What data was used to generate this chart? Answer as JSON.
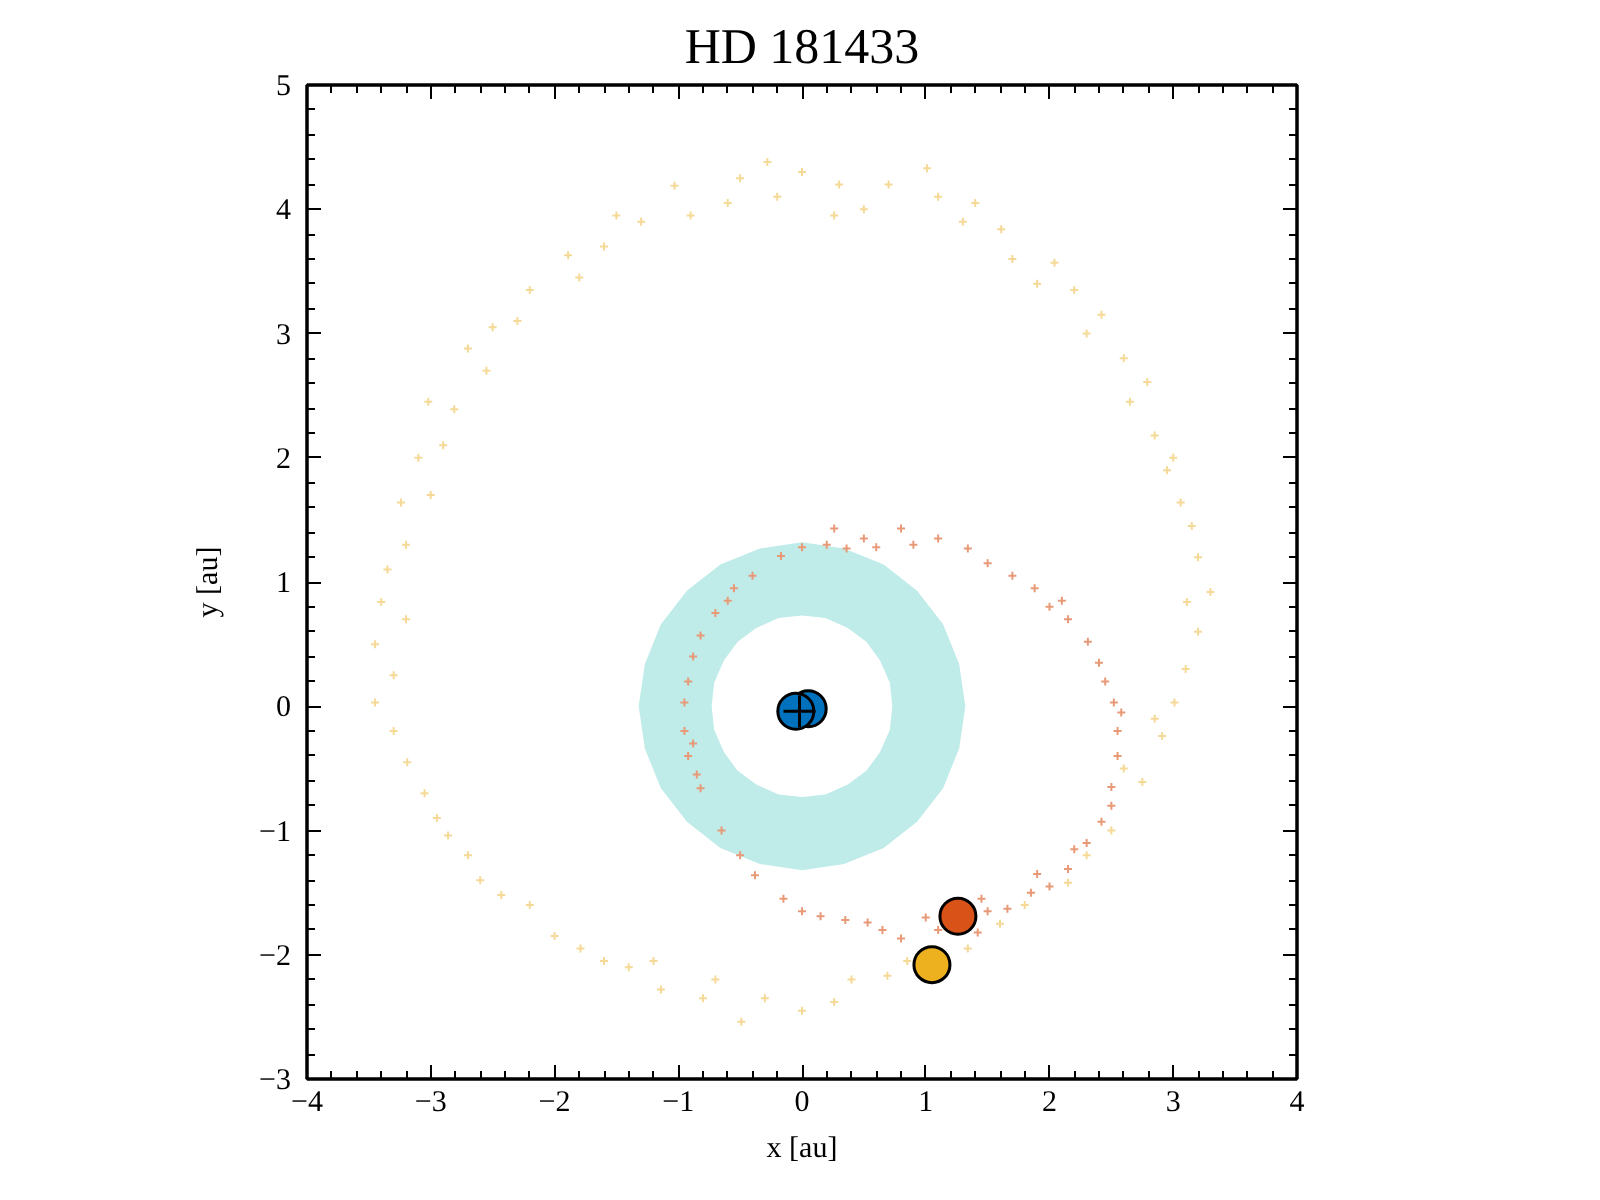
{
  "chart_data": {
    "type": "scatter",
    "title": "HD 181433",
    "xlabel": "x [au]",
    "ylabel": "y [au]",
    "xlim": [
      -4,
      4
    ],
    "ylim": [
      -3,
      5
    ],
    "xticks": [
      -4,
      -3,
      -2,
      -1,
      0,
      1,
      2,
      3,
      4
    ],
    "yticks": [
      -3,
      -2,
      -1,
      0,
      1,
      2,
      3,
      4,
      5
    ],
    "grid": false,
    "series": [
      {
        "type": "area",
        "color": "#bfebe9",
        "x": [
          1.32,
          1.27,
          1.14,
          0.93,
          0.66,
          0.34,
          0,
          -0.34,
          -0.66,
          -0.93,
          -1.14,
          -1.27,
          -1.32,
          -1.27,
          -1.14,
          -0.93,
          -0.66,
          -0.34,
          0,
          0.34,
          0.66,
          0.93,
          1.14,
          1.27,
          1.32,
          0.73,
          0.71,
          0.63,
          0.52,
          0.37,
          0.19,
          0,
          -0.19,
          -0.37,
          -0.52,
          -0.63,
          -0.71,
          -0.73,
          -0.71,
          -0.63,
          -0.52,
          -0.37,
          -0.19,
          0,
          0.19,
          0.37,
          0.52,
          0.63,
          0.71,
          0.73
        ],
        "values": [
          0,
          0.34,
          0.66,
          0.93,
          1.14,
          1.27,
          1.32,
          1.27,
          1.14,
          0.93,
          0.66,
          0.34,
          0,
          -0.34,
          -0.66,
          -0.93,
          -1.14,
          -1.27,
          -1.32,
          -1.27,
          -1.14,
          -0.93,
          -0.66,
          -0.34,
          0,
          0,
          -0.19,
          -0.37,
          -0.52,
          -0.63,
          -0.71,
          -0.73,
          -0.71,
          -0.63,
          -0.52,
          -0.37,
          -0.19,
          0,
          0.19,
          0.37,
          0.52,
          0.63,
          0.71,
          0.73,
          0.71,
          0.63,
          0.52,
          0.37,
          0.19,
          0
        ]
      },
      {
        "marker": "cross",
        "color": "#f5d996",
        "x": [
          3.01,
          3.1,
          3.2,
          3.11,
          3.3,
          3.2,
          3.15,
          3.06,
          2.95,
          3.0,
          2.85,
          2.65,
          2.79,
          2.6,
          2.42,
          2.3,
          2.2,
          2.04,
          1.9,
          1.7,
          1.61,
          1.3,
          1.4,
          1.1,
          1.01,
          0.7,
          0.5,
          0.3,
          0.26,
          0.0,
          -0.2,
          -0.28,
          -0.5,
          -0.6,
          -0.9,
          -1.03,
          -1.3,
          -1.5,
          -1.6,
          -1.89,
          -1.8,
          -2.2,
          -2.3,
          -2.5,
          -2.55,
          -2.7,
          -2.81,
          -3.02,
          -2.9,
          -3.1,
          -3.0,
          -3.24,
          -3.2,
          -3.35,
          -3.4,
          -3.2,
          -3.45,
          -3.3,
          -3.45,
          -3.3,
          -3.19,
          -3.05,
          -2.95,
          -2.86,
          -2.7,
          -2.6,
          -2.43,
          -2.2,
          -2.0,
          -1.79,
          -1.6,
          -1.4,
          -1.2,
          -1.14,
          -0.8,
          -0.7,
          -0.49,
          -0.3,
          0.0,
          0.26,
          0.4,
          0.69,
          0.85,
          1.34,
          1.6,
          1.8,
          2.15,
          2.3,
          2.5,
          2.6,
          2.75,
          2.85,
          2.91
        ],
        "values": [
          0.03,
          0.3,
          0.6,
          0.84,
          0.92,
          1.2,
          1.45,
          1.64,
          1.9,
          2.0,
          2.18,
          2.45,
          2.61,
          2.8,
          3.15,
          3.0,
          3.35,
          3.57,
          3.4,
          3.6,
          3.84,
          3.9,
          4.05,
          4.1,
          4.33,
          4.2,
          4.0,
          4.2,
          3.95,
          4.3,
          4.1,
          4.38,
          4.25,
          4.05,
          3.95,
          4.19,
          3.9,
          3.95,
          3.7,
          3.63,
          3.45,
          3.35,
          3.1,
          3.05,
          2.7,
          2.88,
          2.39,
          2.45,
          2.1,
          2.0,
          1.7,
          1.64,
          1.3,
          1.1,
          0.84,
          0.7,
          0.5,
          0.25,
          0.03,
          -0.2,
          -0.45,
          -0.7,
          -0.9,
          -1.04,
          -1.2,
          -1.4,
          -1.52,
          -1.6,
          -1.85,
          -1.95,
          -2.05,
          -2.1,
          -2.05,
          -2.28,
          -2.35,
          -2.2,
          -2.54,
          -2.35,
          -2.45,
          -2.38,
          -2.2,
          -2.17,
          -2.05,
          -1.95,
          -1.75,
          -1.6,
          -1.42,
          -1.2,
          -1.0,
          -0.5,
          -0.61,
          -0.1,
          -0.24
        ]
      },
      {
        "marker": "cross",
        "color": "#e89a78",
        "x": [
          2.52,
          2.58,
          2.55,
          2.55,
          2.5,
          2.5,
          2.42,
          2.3,
          2.2,
          2.15,
          2.0,
          1.9,
          1.85,
          1.66,
          1.5,
          1.45,
          1.42,
          1.1,
          1.0,
          0.8,
          0.65,
          0.53,
          0.35,
          0.15,
          0.0,
          -0.15,
          -0.38,
          -0.5,
          -0.65,
          -0.82,
          -0.85,
          -0.92,
          -0.95,
          -0.88,
          -0.95,
          -0.92,
          -0.88,
          -0.82,
          -0.7,
          -0.6,
          -0.55,
          -0.4,
          -0.17,
          0.0,
          0.2,
          0.36,
          0.26,
          0.5,
          0.6,
          0.8,
          0.9,
          1.1,
          1.34,
          1.5,
          1.7,
          1.88,
          2.0,
          2.1,
          2.15,
          2.31,
          2.4,
          2.45
        ],
        "values": [
          0.03,
          -0.05,
          -0.2,
          -0.4,
          -0.65,
          -0.8,
          -0.93,
          -1.1,
          -1.15,
          -1.31,
          -1.45,
          -1.35,
          -1.5,
          -1.63,
          -1.65,
          -1.55,
          -1.82,
          -1.8,
          -1.7,
          -1.87,
          -1.8,
          -1.74,
          -1.72,
          -1.69,
          -1.65,
          -1.55,
          -1.36,
          -1.2,
          -1.0,
          -0.66,
          -0.55,
          -0.4,
          -0.2,
          -0.3,
          0.03,
          0.2,
          0.4,
          0.57,
          0.75,
          0.85,
          0.95,
          1.05,
          1.21,
          1.28,
          1.3,
          1.27,
          1.43,
          1.35,
          1.28,
          1.43,
          1.3,
          1.35,
          1.27,
          1.15,
          1.05,
          0.95,
          0.8,
          0.85,
          0.7,
          0.52,
          0.35,
          0.2
        ]
      },
      {
        "marker": "circle",
        "color": "#0072bd",
        "x": [
          0.05
        ],
        "values": [
          -0.02
        ]
      },
      {
        "marker": "circle",
        "color": "#0072bd",
        "x": [
          -0.05
        ],
        "values": [
          -0.04
        ]
      },
      {
        "marker": "cross",
        "color": "#000000",
        "x": [
          -0.02
        ],
        "values": [
          -0.04
        ]
      },
      {
        "marker": "circle",
        "color": "#d95319",
        "x": [
          1.26
        ],
        "values": [
          -1.69
        ]
      },
      {
        "marker": "circle",
        "color": "#edb120",
        "x": [
          1.05
        ],
        "values": [
          -2.08
        ]
      }
    ]
  }
}
